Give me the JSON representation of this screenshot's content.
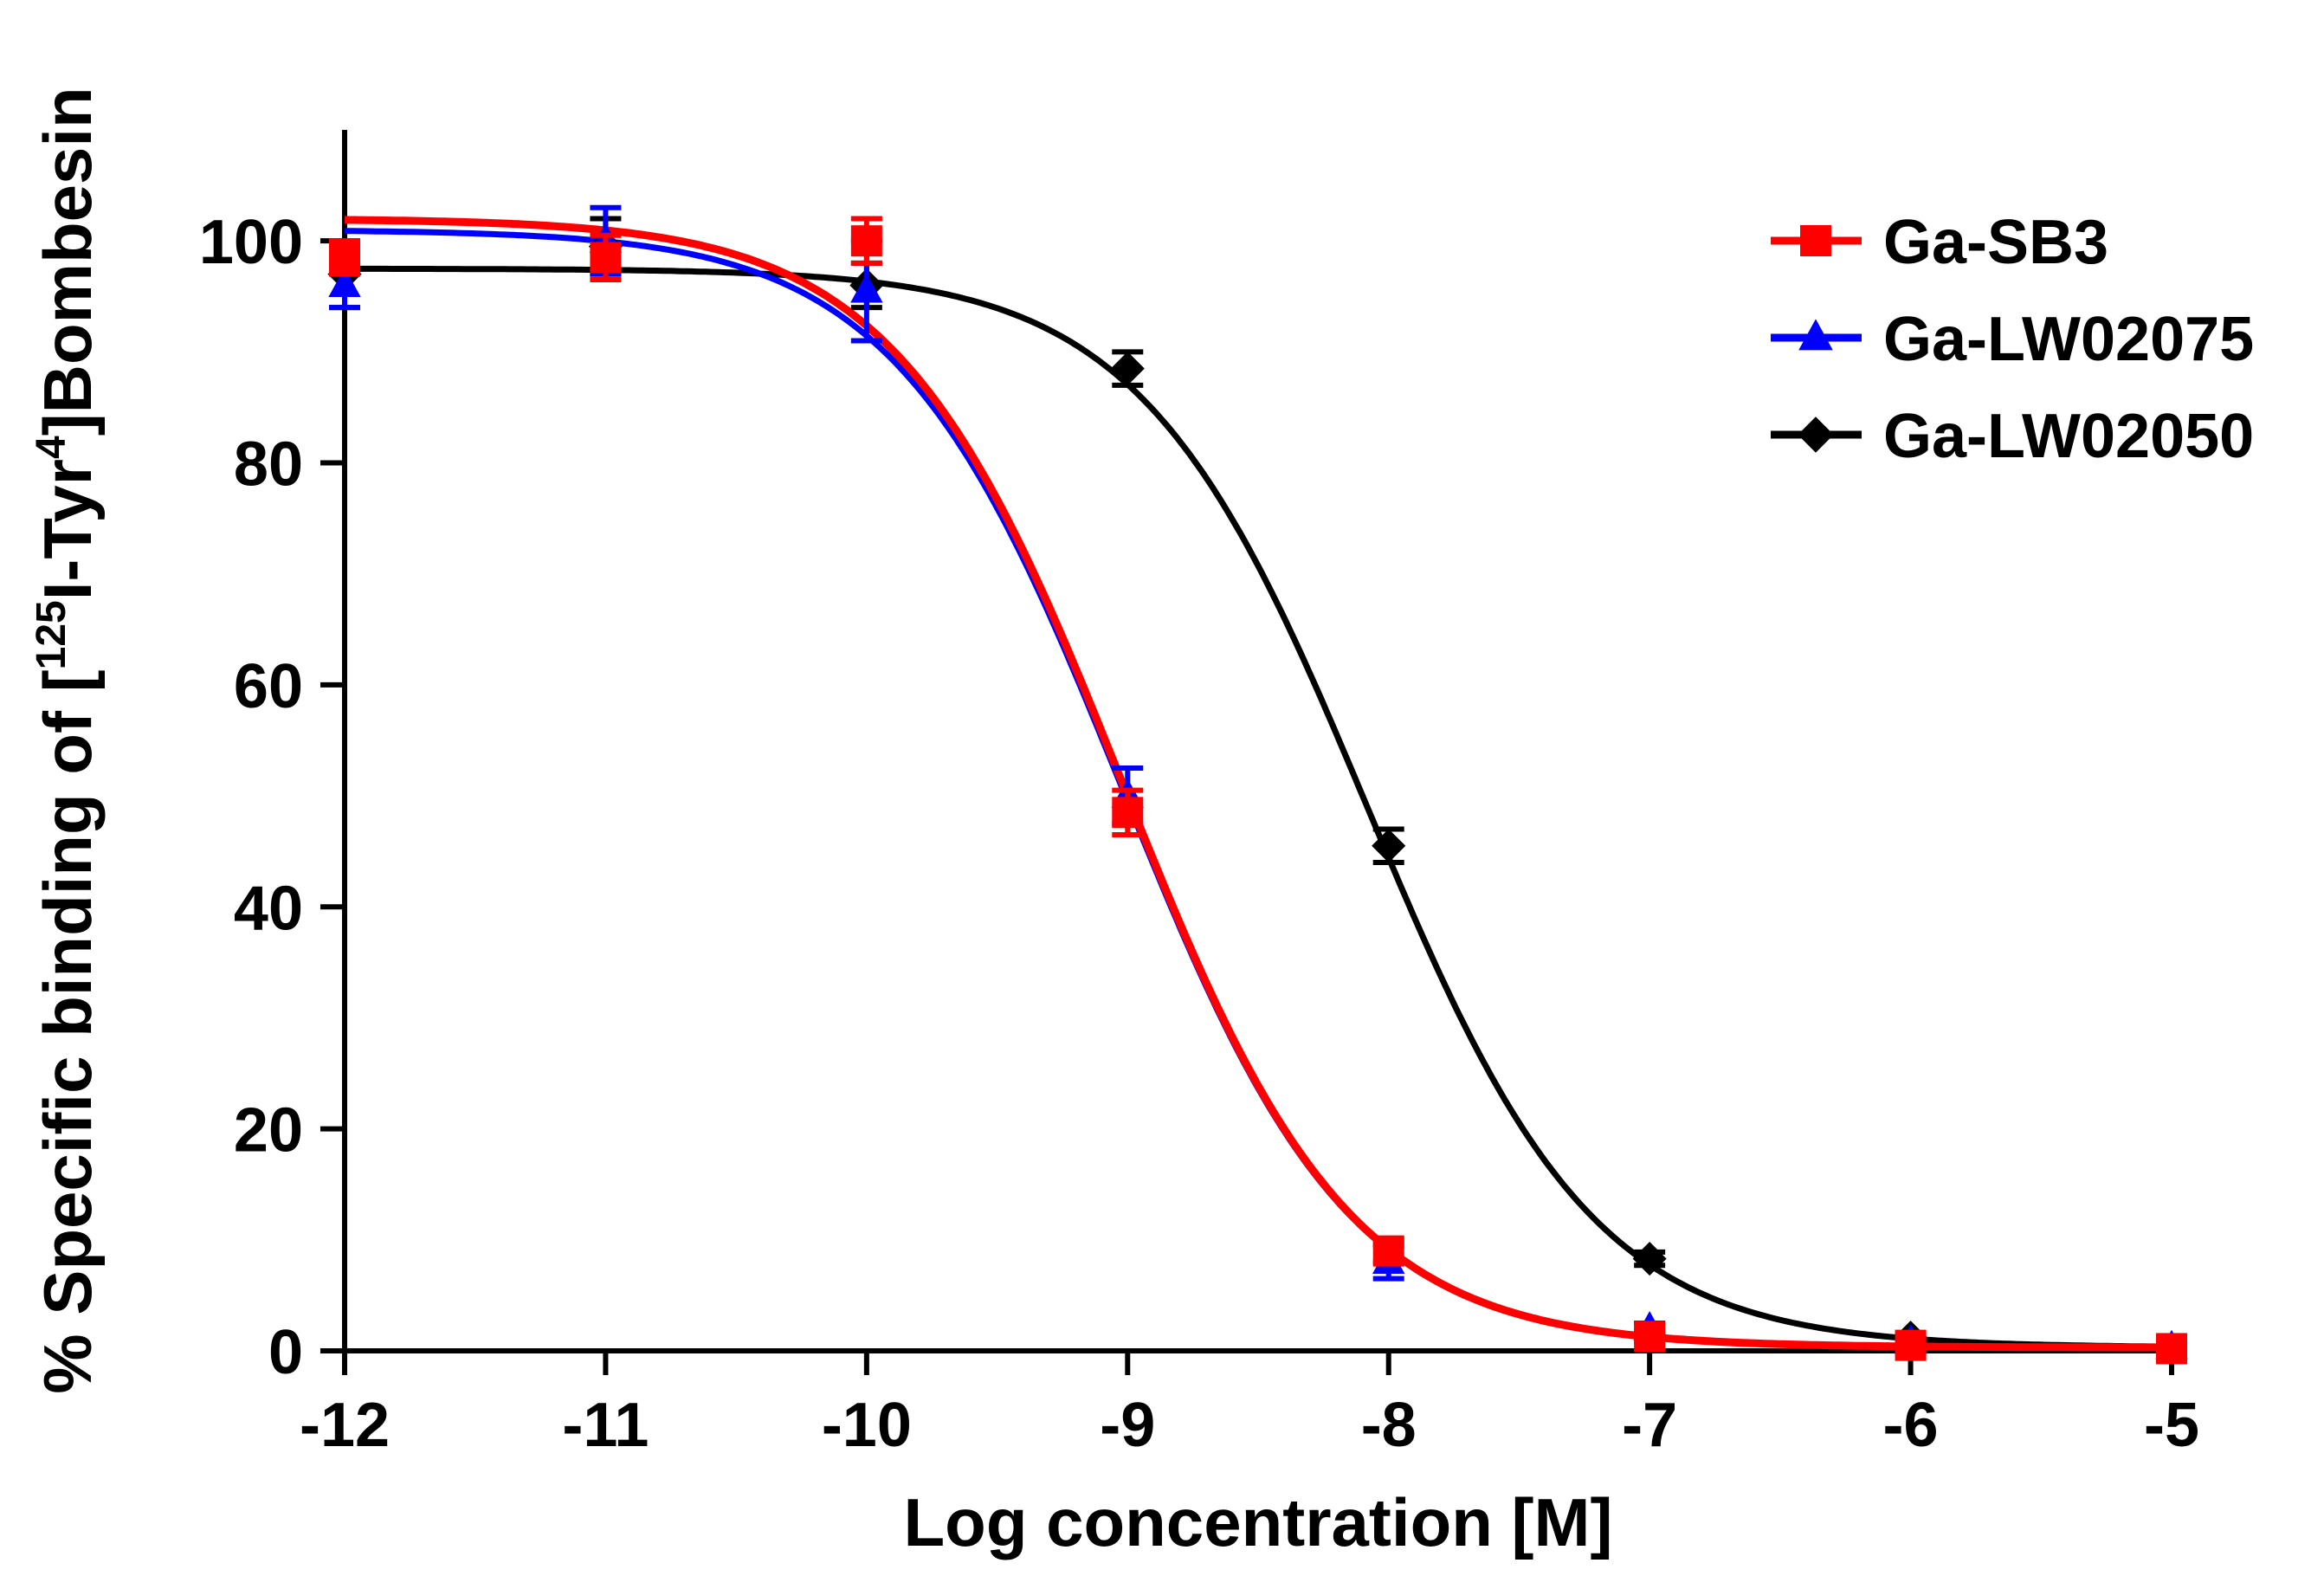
{
  "chart_data": {
    "type": "line",
    "title": "",
    "xlabel": "Log concentration [M]",
    "ylabel": {
      "prefix": "% Specific binding of [",
      "sup1": "125",
      "middle": "I-Tyr",
      "sup2": "4",
      "suffix": "]Bombesin"
    },
    "xlim": [
      -12,
      -5
    ],
    "ylim": [
      0,
      110
    ],
    "xticks": [
      -12,
      -11,
      -10,
      -9,
      -8,
      -7,
      -6,
      -5
    ],
    "xtick_labels": [
      "-12",
      "-11",
      "-10",
      "-9",
      "-8",
      "-7",
      "-6",
      "-5"
    ],
    "yticks": [
      0,
      20,
      40,
      60,
      80,
      100
    ],
    "ytick_labels": [
      "0",
      "20",
      "40",
      "60",
      "80",
      "100"
    ],
    "legend_position": "top-right",
    "series": [
      {
        "name": "Ga-LW02050",
        "color": "#000000",
        "marker": "diamond",
        "fit": {
          "top": 97.5,
          "bottom": 0.3,
          "logIC50": -8.08,
          "hill": -1.0
        },
        "x": [
          -12,
          -11,
          -10,
          -9,
          -8,
          -7,
          -6
        ],
        "y": [
          97.0,
          99.5,
          96.0,
          88.5,
          45.5,
          8.3,
          1.2
        ],
        "err": [
          3.0,
          2.5,
          2.0,
          1.5,
          1.5,
          0.6,
          0.3
        ]
      },
      {
        "name": "Ga-LW02075",
        "color": "#0000ff",
        "marker": "triangle",
        "fit": {
          "top": 101.0,
          "bottom": 0.3,
          "logIC50": -9.02,
          "hill": -1.0
        },
        "x": [
          -12,
          -11,
          -10,
          -9,
          -8,
          -7,
          -6,
          -5
        ],
        "y": [
          96.0,
          100.0,
          95.5,
          50.0,
          8.0,
          2.0,
          0.8,
          0.3
        ],
        "err": [
          2.0,
          3.0,
          4.5,
          2.5,
          1.5,
          0.5,
          0.3,
          0.2
        ]
      },
      {
        "name": "Ga-SB3",
        "color": "#ff0000",
        "marker": "square",
        "fit": {
          "top": 102.0,
          "bottom": 0.3,
          "logIC50": -9.02,
          "hill": -1.0
        },
        "x": [
          -12,
          -11,
          -10,
          -9,
          -8,
          -7,
          -6,
          -5
        ],
        "y": [
          98.5,
          98.5,
          100.0,
          48.5,
          9.0,
          1.3,
          0.5,
          0.2
        ],
        "err": [
          1.5,
          2.0,
          2.0,
          2.0,
          1.0,
          0.5,
          0.3,
          0.2
        ]
      }
    ],
    "legend_order": [
      "Ga-SB3",
      "Ga-LW02075",
      "Ga-LW02050"
    ]
  }
}
